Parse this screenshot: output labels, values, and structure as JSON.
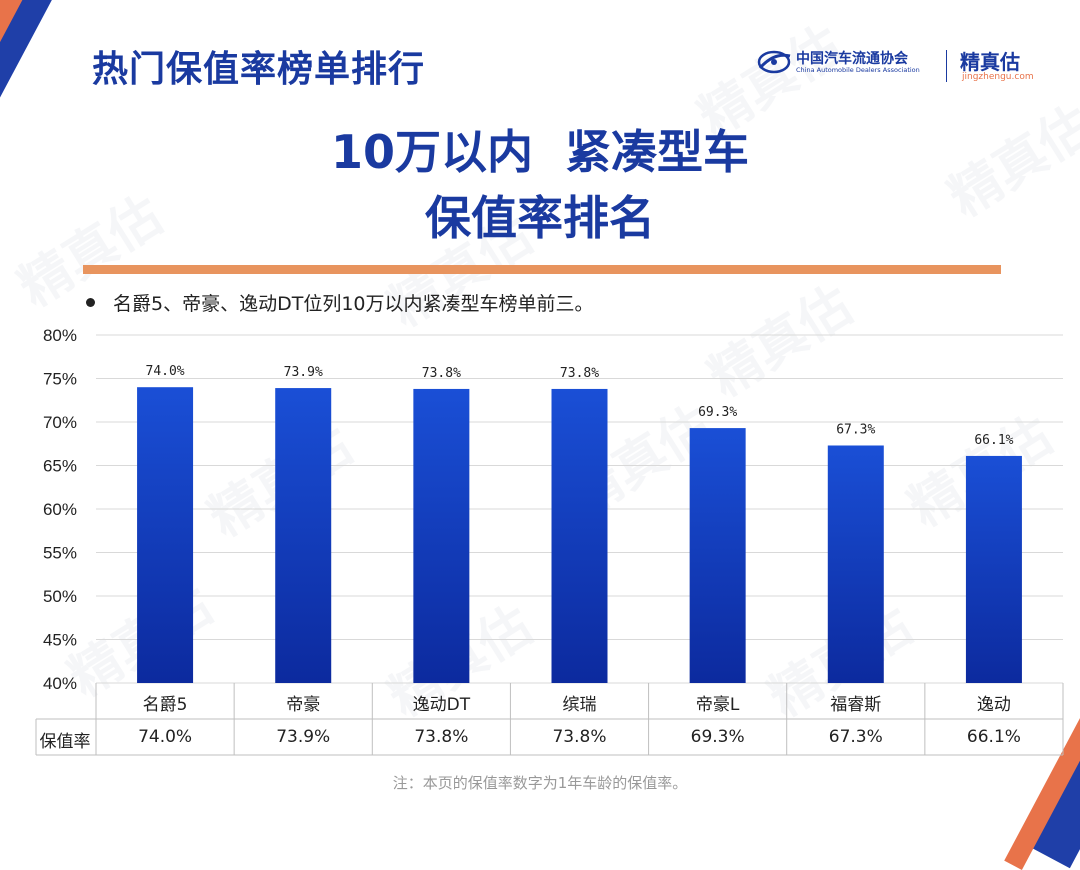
{
  "header": {
    "title": "热门保值率榜单排行"
  },
  "logos": {
    "caada_cn": "中国汽车流通协会",
    "caada_en": "China Automobile Dealers Association",
    "jzg_cn": "精真估",
    "jzg_en": "jingzhengu.com"
  },
  "main_title": {
    "line1": "10万以内  紧凑型车",
    "line2": "保值率排名"
  },
  "bullet": "名爵5、帝豪、逸动DT位列10万以内紧凑型车榜单前三。",
  "table": {
    "row_header": "保值率"
  },
  "footnote": "注：本页的保值率数字为1年车龄的保值率。",
  "watermark": "精真估",
  "colors": {
    "bar_top": "#1a4fd6",
    "bar_bottom": "#0c2a9e",
    "title_blue": "#1a3aa0",
    "accent_orange": "#e8945e",
    "grid": "#d9d9d9"
  },
  "chart_data": {
    "type": "bar",
    "categories": [
      "名爵5",
      "帝豪",
      "逸动DT",
      "缤瑞",
      "帝豪L",
      "福睿斯",
      "逸动"
    ],
    "values": [
      74.0,
      73.9,
      73.8,
      73.8,
      69.3,
      67.3,
      66.1
    ],
    "data_labels": [
      "74.0%",
      "73.9%",
      "73.8%",
      "73.8%",
      "69.3%",
      "67.3%",
      "66.1%"
    ],
    "table_values": [
      "74.0%",
      "73.9%",
      "73.8%",
      "73.8%",
      "69.3%",
      "67.3%",
      "66.1%"
    ],
    "ylim": [
      40,
      80
    ],
    "yticks": [
      40,
      45,
      50,
      55,
      60,
      65,
      70,
      75,
      80
    ],
    "ytick_labels": [
      "40%",
      "45%",
      "50%",
      "55%",
      "60%",
      "65%",
      "70%",
      "75%",
      "80%"
    ],
    "grid": true,
    "legend": "none"
  }
}
